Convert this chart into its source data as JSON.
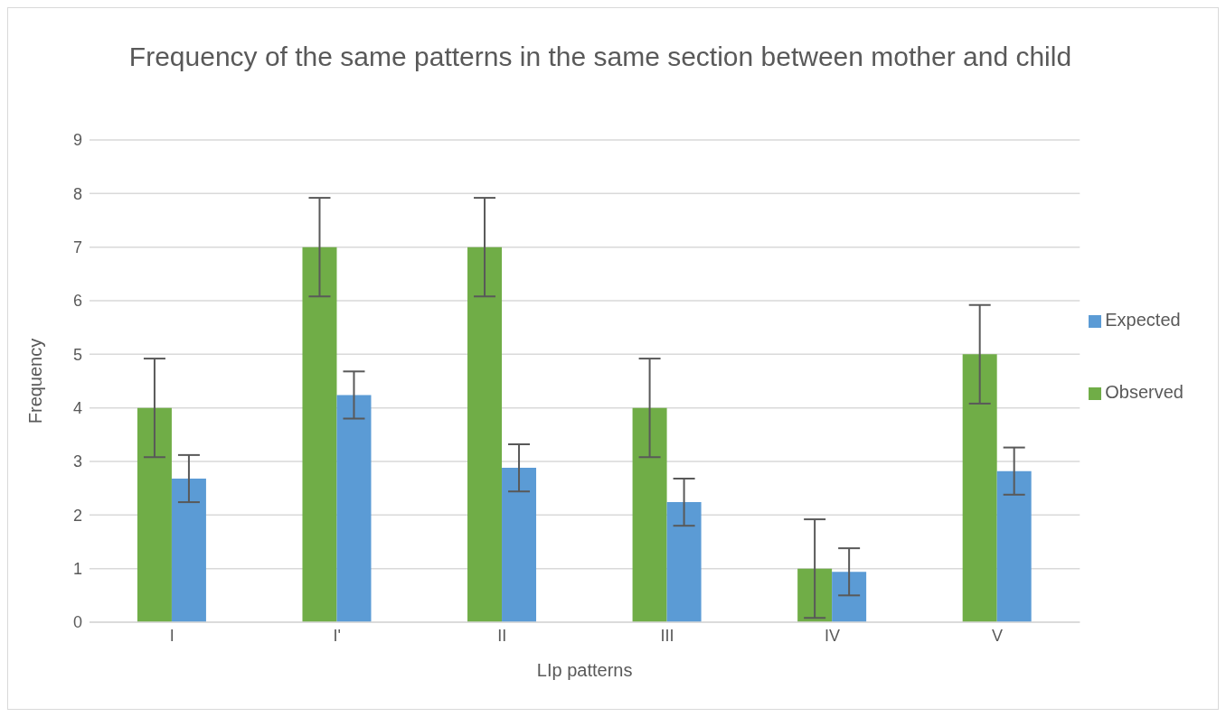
{
  "chart_data": {
    "type": "bar",
    "title": "Frequency of the same patterns in the same section between mother and child",
    "xlabel": "LIp patterns",
    "ylabel": "Frequency",
    "categories": [
      "I",
      "I'",
      "II",
      "III",
      "IV",
      "V"
    ],
    "series": [
      {
        "name": "Observed",
        "color": "#70ad47",
        "values": [
          4,
          7,
          7,
          4,
          1,
          5
        ],
        "errors": [
          0.92,
          0.92,
          0.92,
          0.92,
          0.92,
          0.92
        ]
      },
      {
        "name": "Expected",
        "color": "#5b9bd5",
        "values": [
          2.68,
          4.24,
          2.88,
          2.24,
          0.94,
          2.82
        ],
        "errors": [
          0.44,
          0.44,
          0.44,
          0.44,
          0.44,
          0.44
        ]
      }
    ],
    "ylim": [
      0,
      9
    ],
    "yticks": [
      0,
      1,
      2,
      3,
      4,
      5,
      6,
      7,
      8,
      9
    ],
    "grid": "y",
    "legend": "right"
  }
}
